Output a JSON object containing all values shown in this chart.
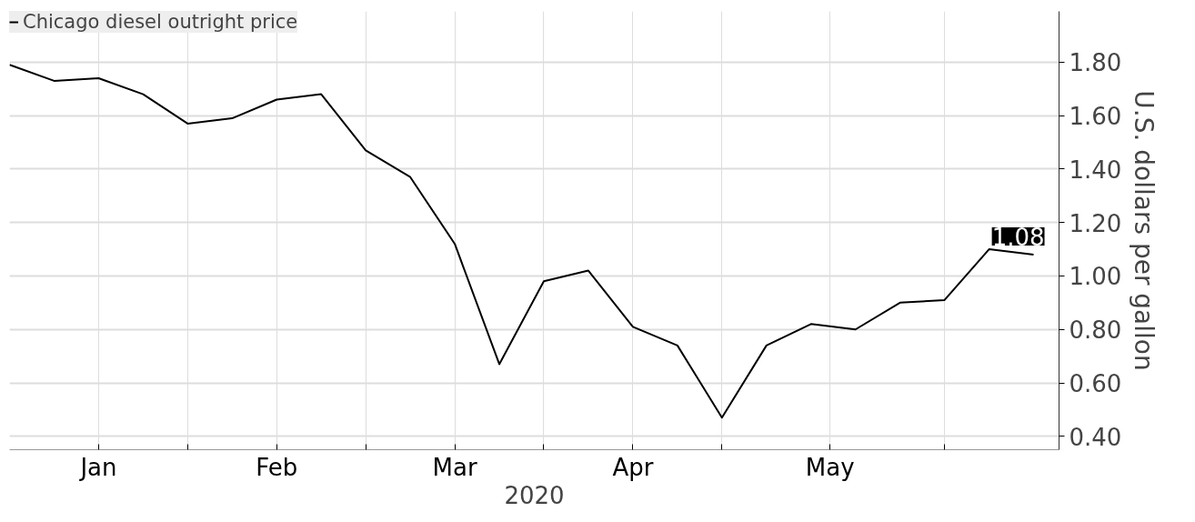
{
  "chart_data": {
    "type": "line",
    "x": [
      "2020-01-04",
      "2020-01-11",
      "2020-01-18",
      "2020-01-25",
      "2020-02-01",
      "2020-02-08",
      "2020-02-15",
      "2020-02-22",
      "2020-02-29",
      "2020-03-07",
      "2020-03-14",
      "2020-03-21",
      "2020-03-28",
      "2020-04-04",
      "2020-04-11",
      "2020-04-18",
      "2020-04-25",
      "2020-05-02",
      "2020-05-09",
      "2020-05-16",
      "2020-05-23",
      "2020-05-30",
      "2020-06-06",
      "2020-06-13"
    ],
    "series": [
      {
        "name": "Chicago diesel outright price",
        "color": "#000000",
        "values": [
          1.79,
          1.73,
          1.74,
          1.68,
          1.57,
          1.59,
          1.66,
          1.68,
          1.47,
          1.37,
          1.12,
          0.67,
          0.98,
          1.02,
          0.81,
          0.74,
          0.47,
          0.74,
          0.82,
          0.8,
          0.9,
          0.91,
          1.1,
          1.08
        ],
        "value_labels": [
          null,
          null,
          null,
          null,
          null,
          null,
          null,
          null,
          null,
          null,
          null,
          null,
          null,
          null,
          null,
          null,
          null,
          null,
          null,
          null,
          null,
          null,
          null,
          "1.08"
        ]
      }
    ],
    "xlabel": "2020",
    "ylabel": "U.S. dollars per gallon",
    "xlim": [
      "2020-01-04",
      "2020-06-17"
    ],
    "xticks": [
      {
        "value": "2020-01-18",
        "label": "Jan"
      },
      {
        "value": "2020-02-01",
        "label": null
      },
      {
        "value": "2020-02-15",
        "label": "Feb"
      },
      {
        "value": "2020-02-29",
        "label": null
      },
      {
        "value": "2020-03-14",
        "label": "Mar"
      },
      {
        "value": "2020-03-28",
        "label": null
      },
      {
        "value": "2020-04-11",
        "label": "Apr"
      },
      {
        "value": "2020-04-25",
        "label": null
      },
      {
        "value": "2020-05-12",
        "label": "May"
      },
      {
        "value": "2020-05-30",
        "label": null
      }
    ],
    "ylim": [
      0.35,
      1.99
    ],
    "yticks": [
      {
        "value": 0.4,
        "label": "0.40"
      },
      {
        "value": 0.6,
        "label": "0.60"
      },
      {
        "value": 0.8,
        "label": "0.80"
      },
      {
        "value": 1.0,
        "label": "1.00"
      },
      {
        "value": 1.2,
        "label": "1.20"
      },
      {
        "value": 1.4,
        "label": "1.40"
      },
      {
        "value": 1.6,
        "label": "1.60"
      },
      {
        "value": 1.8,
        "label": "1.80"
      }
    ],
    "grid": true,
    "legend": "top left",
    "marker": "none",
    "line_style": "solid"
  }
}
